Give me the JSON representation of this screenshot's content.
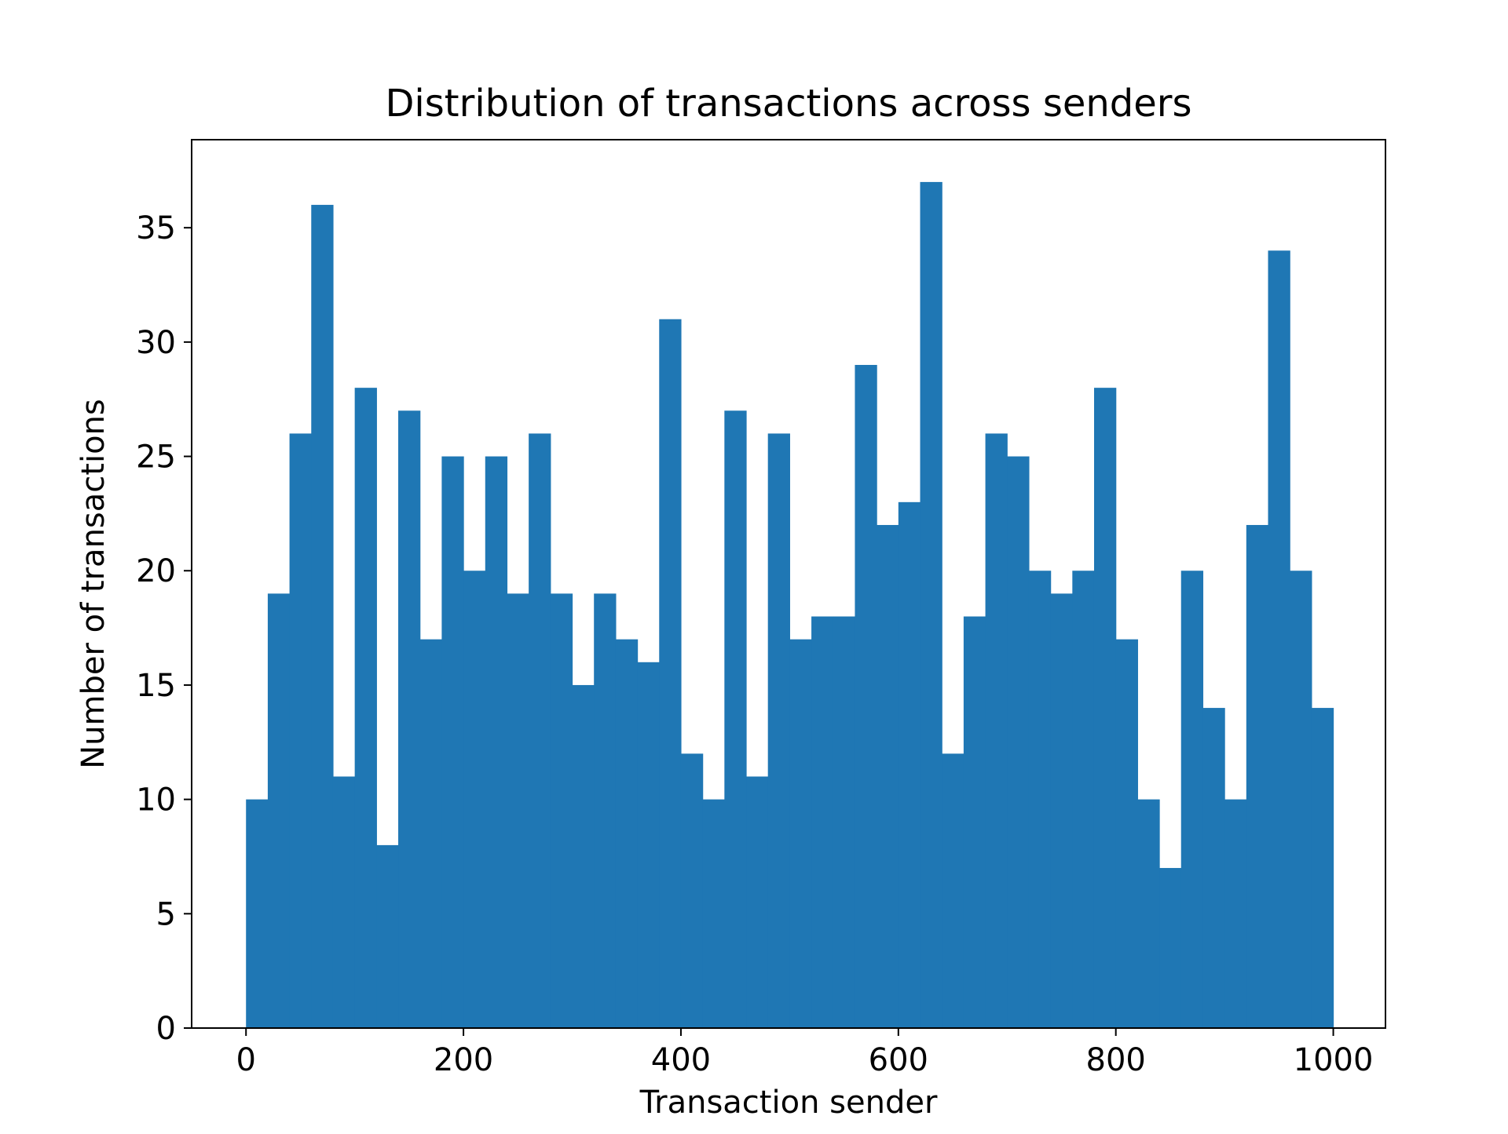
{
  "chart_data": {
    "type": "bar",
    "title": "Distribution of transactions across senders",
    "xlabel": "Transaction sender",
    "ylabel": "Number of transactions",
    "xlim": [
      -50,
      1048
    ],
    "ylim": [
      0,
      38.85
    ],
    "xticks": [
      0,
      200,
      400,
      600,
      800,
      1000
    ],
    "yticks": [
      0,
      5,
      10,
      15,
      20,
      25,
      30,
      35
    ],
    "bin_start": 0,
    "bin_width": 20,
    "values": [
      10,
      19,
      26,
      36,
      11,
      28,
      8,
      27,
      17,
      25,
      20,
      25,
      19,
      26,
      19,
      15,
      19,
      17,
      16,
      31,
      12,
      10,
      27,
      11,
      26,
      17,
      18,
      18,
      29,
      22,
      23,
      37,
      12,
      18,
      26,
      25,
      20,
      19,
      20,
      28,
      17,
      10,
      7,
      20,
      14,
      10,
      22,
      34,
      20,
      14
    ],
    "bar_color": "#1f77b4",
    "grid": false,
    "legend": false
  }
}
